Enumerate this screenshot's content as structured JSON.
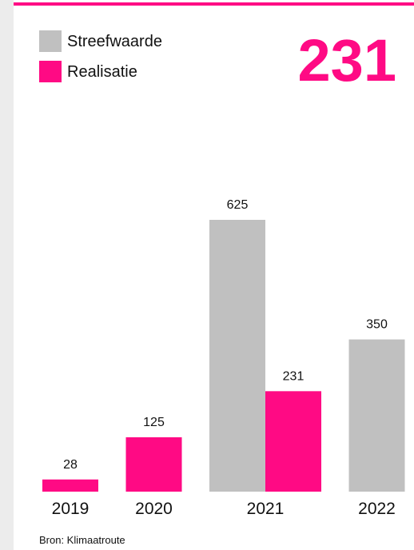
{
  "chart_data": {
    "type": "bar",
    "categories": [
      "2019",
      "2020",
      "2021",
      "2022"
    ],
    "series": [
      {
        "name": "Streefwaarde",
        "color": "#c0c0c0",
        "values": [
          null,
          null,
          625,
          350
        ]
      },
      {
        "name": "Realisatie",
        "color": "#ff0a84",
        "values": [
          28,
          125,
          231,
          null
        ]
      }
    ],
    "source": "Bron: Klimaatroute"
  }
}
